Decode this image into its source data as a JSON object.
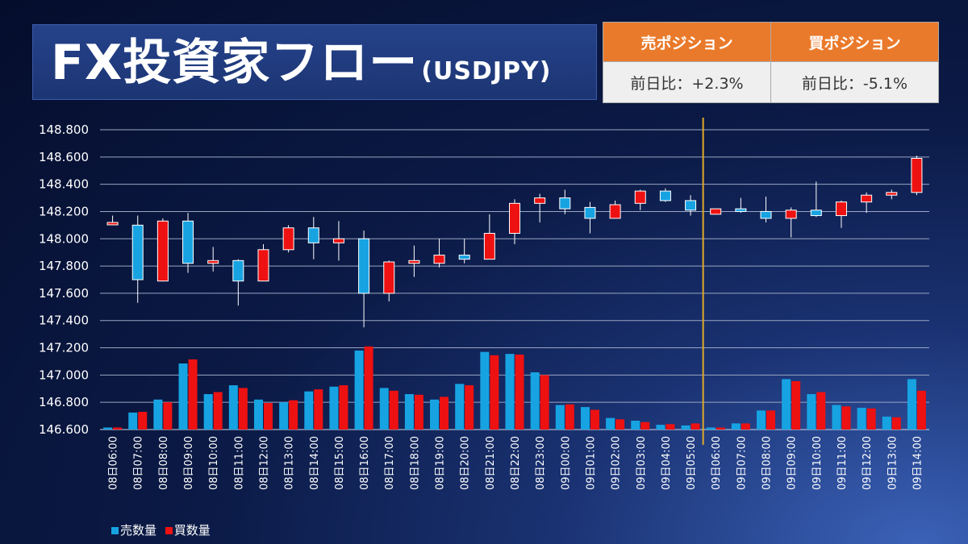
{
  "header": {
    "title_main": "FX投資家フロー",
    "title_sub": "(USDJPY)"
  },
  "positions": {
    "sell_label": "売ポジション",
    "buy_label": "買ポジション",
    "sell_change": "前日比：+2.3%",
    "buy_change": "前日比：-5.1%"
  },
  "colors": {
    "sell": "#17a3e2",
    "buy": "#ee1111",
    "marker": "#e0a92a",
    "header_orange": "#ea7a2b"
  },
  "chart_data": {
    "type": "candlestick",
    "ylim": [
      146.6,
      148.8
    ],
    "y_ticks": [
      "146.600",
      "146.800",
      "147.000",
      "147.200",
      "147.400",
      "147.600",
      "147.800",
      "148.000",
      "148.200",
      "148.400",
      "148.600",
      "148.800"
    ],
    "y_tick_values": [
      146.6,
      146.8,
      147.0,
      147.2,
      147.4,
      147.6,
      147.8,
      148.0,
      148.2,
      148.4,
      148.6,
      148.8
    ],
    "grid": true,
    "legend_position": "bottom-left",
    "legend": [
      {
        "name": "売数量",
        "color": "#17a3e2"
      },
      {
        "name": "買数量",
        "color": "#ee1111"
      }
    ],
    "categories": [
      "08日06:00",
      "08日07:00",
      "08日08:00",
      "08日09:00",
      "08日10:00",
      "08日11:00",
      "08日12:00",
      "08日13:00",
      "08日14:00",
      "08日15:00",
      "08日16:00",
      "08日17:00",
      "08日18:00",
      "08日19:00",
      "08日20:00",
      "08日21:00",
      "08日22:00",
      "08日23:00",
      "09日00:00",
      "09日01:00",
      "09日02:00",
      "09日03:00",
      "09日04:00",
      "09日05:00",
      "09日06:00",
      "09日07:00",
      "09日08:00",
      "09日09:00",
      "09日10:00",
      "09日11:00",
      "09日12:00",
      "09日13:00",
      "09日14:00"
    ],
    "marker_after": "09日05:00",
    "candles": [
      {
        "o": 148.11,
        "h": 148.17,
        "l": 148.11,
        "c": 148.12
      },
      {
        "o": 148.1,
        "h": 148.17,
        "l": 147.53,
        "c": 147.7
      },
      {
        "o": 147.69,
        "h": 148.15,
        "l": 147.69,
        "c": 148.13
      },
      {
        "o": 148.13,
        "h": 148.19,
        "l": 147.75,
        "c": 147.82
      },
      {
        "o": 147.82,
        "h": 147.94,
        "l": 147.76,
        "c": 147.84
      },
      {
        "o": 147.84,
        "h": 147.85,
        "l": 147.51,
        "c": 147.69
      },
      {
        "o": 147.69,
        "h": 147.96,
        "l": 147.69,
        "c": 147.92
      },
      {
        "o": 147.92,
        "h": 148.1,
        "l": 147.9,
        "c": 148.08
      },
      {
        "o": 148.08,
        "h": 148.16,
        "l": 147.85,
        "c": 147.97
      },
      {
        "o": 147.97,
        "h": 148.13,
        "l": 147.84,
        "c": 148.0
      },
      {
        "o": 148.0,
        "h": 148.06,
        "l": 147.35,
        "c": 147.6
      },
      {
        "o": 147.6,
        "h": 147.84,
        "l": 147.54,
        "c": 147.83
      },
      {
        "o": 147.82,
        "h": 147.95,
        "l": 147.72,
        "c": 147.84
      },
      {
        "o": 147.82,
        "h": 148.0,
        "l": 147.79,
        "c": 147.88
      },
      {
        "o": 147.88,
        "h": 148.0,
        "l": 147.82,
        "c": 147.85
      },
      {
        "o": 147.85,
        "h": 148.18,
        "l": 147.85,
        "c": 148.04
      },
      {
        "o": 148.04,
        "h": 148.29,
        "l": 147.96,
        "c": 148.26
      },
      {
        "o": 148.26,
        "h": 148.33,
        "l": 148.12,
        "c": 148.3
      },
      {
        "o": 148.3,
        "h": 148.36,
        "l": 148.18,
        "c": 148.22
      },
      {
        "o": 148.23,
        "h": 148.27,
        "l": 148.04,
        "c": 148.15
      },
      {
        "o": 148.15,
        "h": 148.28,
        "l": 148.15,
        "c": 148.25
      },
      {
        "o": 148.26,
        "h": 148.36,
        "l": 148.21,
        "c": 148.35
      },
      {
        "o": 148.35,
        "h": 148.37,
        "l": 148.27,
        "c": 148.28
      },
      {
        "o": 148.28,
        "h": 148.32,
        "l": 148.17,
        "c": 148.21
      },
      {
        "o": 148.18,
        "h": 148.22,
        "l": 148.18,
        "c": 148.22
      },
      {
        "o": 148.22,
        "h": 148.3,
        "l": 148.19,
        "c": 148.2
      },
      {
        "o": 148.2,
        "h": 148.31,
        "l": 148.12,
        "c": 148.15
      },
      {
        "o": 148.15,
        "h": 148.23,
        "l": 148.01,
        "c": 148.21
      },
      {
        "o": 148.21,
        "h": 148.42,
        "l": 148.16,
        "c": 148.17
      },
      {
        "o": 148.17,
        "h": 148.28,
        "l": 148.08,
        "c": 148.27
      },
      {
        "o": 148.27,
        "h": 148.34,
        "l": 148.19,
        "c": 148.32
      },
      {
        "o": 148.32,
        "h": 148.36,
        "l": 148.29,
        "c": 148.34
      },
      {
        "o": 148.34,
        "h": 148.61,
        "l": 148.32,
        "c": 148.59
      }
    ],
    "volume_series": [
      {
        "name": "売数量",
        "values": [
          146.615,
          146.725,
          146.82,
          147.085,
          146.86,
          146.925,
          146.82,
          146.8,
          146.88,
          146.915,
          147.18,
          146.905,
          146.86,
          146.82,
          146.935,
          147.17,
          147.155,
          147.02,
          146.78,
          146.765,
          146.685,
          146.665,
          146.635,
          146.63,
          146.615,
          146.645,
          146.74,
          146.97,
          146.86,
          146.78,
          146.76,
          146.695,
          146.97
        ]
      },
      {
        "name": "買数量",
        "values": [
          146.615,
          146.73,
          146.8,
          147.115,
          146.875,
          146.905,
          146.795,
          146.815,
          146.895,
          146.925,
          147.21,
          146.885,
          146.855,
          146.84,
          146.925,
          147.145,
          147.15,
          147.0,
          146.785,
          146.745,
          146.675,
          146.655,
          146.64,
          146.645,
          146.615,
          146.645,
          146.74,
          146.955,
          146.875,
          146.77,
          146.755,
          146.69,
          146.885
        ]
      }
    ]
  }
}
